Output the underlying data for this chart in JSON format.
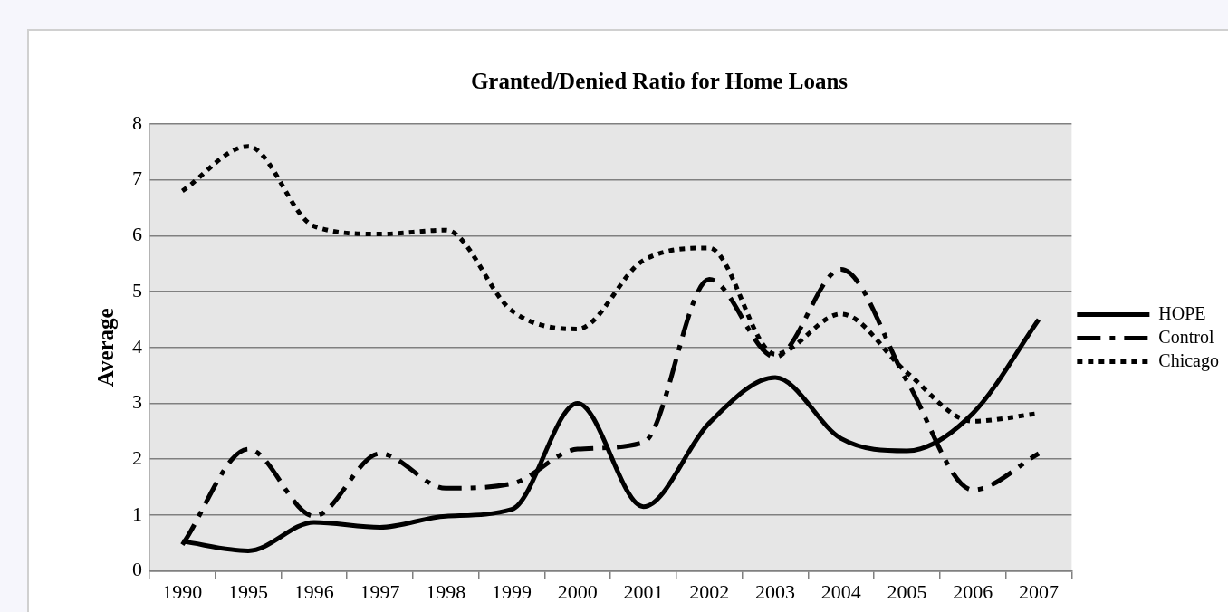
{
  "chart_data": {
    "type": "line",
    "title": "Granted/Denied Ratio for Home Loans",
    "ylabel": "Average",
    "categories": [
      "1990",
      "1995",
      "1996",
      "1997",
      "1998",
      "1999",
      "2000",
      "2001",
      "2002",
      "2003",
      "2004",
      "2005",
      "2006",
      "2007"
    ],
    "series": [
      {
        "name": "HOPE",
        "color": "#000000",
        "line_style": "solid",
        "values": [
          0.53,
          0.36,
          0.87,
          0.78,
          0.98,
          1.1,
          3.0,
          1.15,
          2.65,
          3.46,
          2.37,
          2.15,
          2.82,
          4.5
        ]
      },
      {
        "name": "Control",
        "color": "#000000",
        "line_style": "dashed",
        "values": [
          0.47,
          2.18,
          0.98,
          2.1,
          1.48,
          1.56,
          2.18,
          2.3,
          5.22,
          3.83,
          5.4,
          3.4,
          1.45,
          2.1
        ]
      },
      {
        "name": "Chicago",
        "color": "#000000",
        "line_style": "dotted",
        "values": [
          6.8,
          7.6,
          6.17,
          6.03,
          6.1,
          4.66,
          4.33,
          5.56,
          5.78,
          3.88,
          4.6,
          3.55,
          2.68,
          2.82
        ]
      }
    ],
    "ylim": [
      0,
      8
    ],
    "yticks": [
      0,
      1,
      2,
      3,
      4,
      5,
      6,
      7,
      8
    ],
    "grid": "y",
    "legend": "right",
    "marker": "none"
  }
}
